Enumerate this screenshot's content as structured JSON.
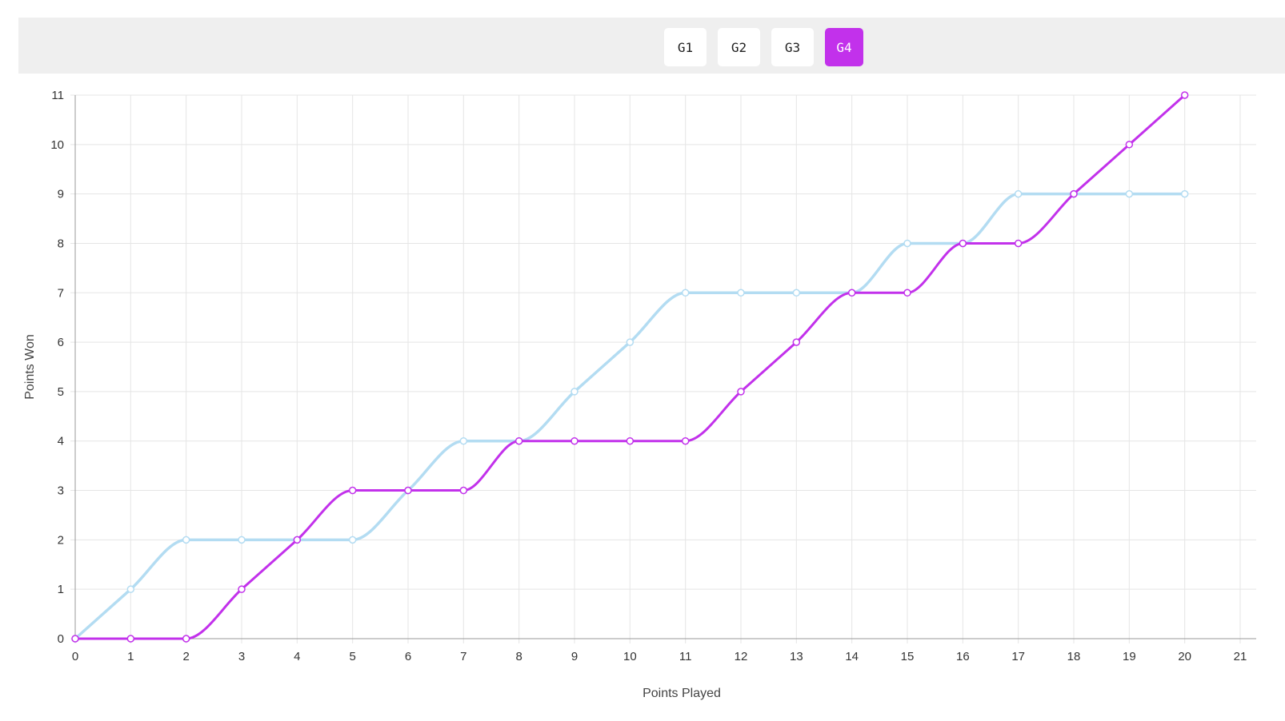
{
  "tabs": [
    {
      "label": "G1",
      "active": false
    },
    {
      "label": "G2",
      "active": false
    },
    {
      "label": "G3",
      "active": false
    },
    {
      "label": "G4",
      "active": true
    }
  ],
  "colors": {
    "accent": "#c231eb",
    "series_light": "#b3dcf2",
    "grid": "#e5e5e5",
    "axis": "#999999"
  },
  "chart_data": {
    "type": "line",
    "xlabel": "Points Played",
    "ylabel": "Points Won",
    "xlim": [
      0,
      21
    ],
    "ylim": [
      0,
      11
    ],
    "x_ticks": [
      0,
      1,
      2,
      3,
      4,
      5,
      6,
      7,
      8,
      9,
      10,
      11,
      12,
      13,
      14,
      15,
      16,
      17,
      18,
      19,
      20,
      21
    ],
    "y_ticks": [
      0,
      1,
      2,
      3,
      4,
      5,
      6,
      7,
      8,
      9,
      10,
      11
    ],
    "grid": true,
    "x": [
      0,
      1,
      2,
      3,
      4,
      5,
      6,
      7,
      8,
      9,
      10,
      11,
      12,
      13,
      14,
      15,
      16,
      17,
      18,
      19,
      20
    ],
    "series": [
      {
        "color": "#b3dcf2",
        "values": [
          0,
          1,
          2,
          2,
          2,
          2,
          3,
          4,
          4,
          5,
          6,
          7,
          7,
          7,
          7,
          8,
          8,
          9,
          9,
          9,
          9
        ]
      },
      {
        "color": "#c231eb",
        "values": [
          0,
          0,
          0,
          1,
          2,
          3,
          3,
          3,
          4,
          4,
          4,
          4,
          5,
          6,
          7,
          7,
          8,
          8,
          9,
          10,
          11
        ]
      }
    ]
  }
}
